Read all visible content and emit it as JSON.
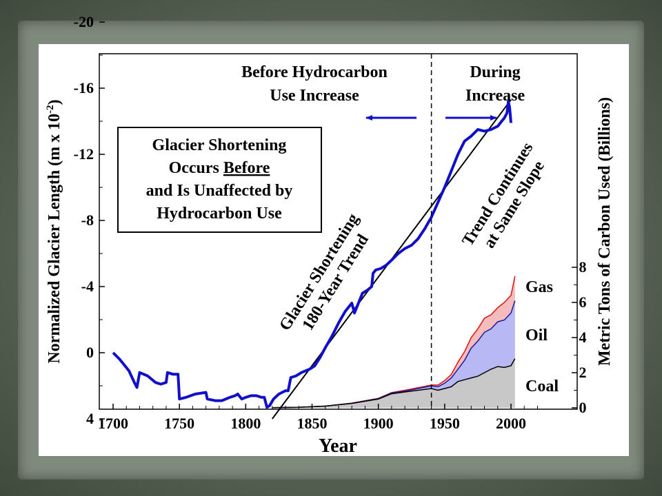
{
  "chart_data": {
    "type": "line",
    "xlabel": "Year",
    "ylabel_left": "Normalized Glacier Length (m x 10",
    "ylabel_left_exp": "-2",
    "ylabel_left_close": ")",
    "ylabel_right": "Metric Tons of Carbon Used (Billions)",
    "x_ticks": [
      "1700",
      "1750",
      "1800",
      "1850",
      "1900",
      "1950",
      "2000"
    ],
    "y_left_ticks": [
      "-20",
      "-16",
      "-12",
      "-8",
      "-4",
      "0",
      "4"
    ],
    "y_right_ticks": [
      "0",
      "2",
      "4",
      "6",
      "8"
    ],
    "xlim": [
      1695,
      2025
    ],
    "ylim_left": [
      4,
      -22
    ],
    "ylim_right": [
      0,
      8
    ],
    "divider_year": 1940,
    "header_left": [
      "Before Hydrocarbon",
      "Use Increase"
    ],
    "header_right": [
      "During",
      "Increase"
    ],
    "box_lines": [
      {
        "pre": "Glacier Shortening",
        "u": "",
        "post": ""
      },
      {
        "pre": "Occurs ",
        "u": "Before",
        "post": ""
      },
      {
        "pre": "and Is Unaffected by",
        "u": "",
        "post": ""
      },
      {
        "pre": "Hydrocarbon Use",
        "u": "",
        "post": ""
      }
    ],
    "trend_label": [
      "Glacier Shortening",
      "180-Year Trend"
    ],
    "continue_label": [
      "Trend Continues",
      "at Same Slope"
    ],
    "series_labels": [
      "Gas",
      "Oil",
      "Coal"
    ],
    "trend_line": [
      [
        1820,
        4
      ],
      [
        2000,
        -15.3
      ]
    ],
    "glacier": {
      "name": "",
      "color": "#1010cc",
      "x": [
        1700,
        1705,
        1708,
        1712,
        1716,
        1718,
        1720,
        1726,
        1732,
        1736,
        1740,
        1741,
        1745,
        1749,
        1750,
        1755,
        1762,
        1770,
        1771,
        1777,
        1782,
        1788,
        1792,
        1794,
        1797,
        1800,
        1804,
        1808,
        1812,
        1814,
        1816,
        1818,
        1821,
        1825,
        1830,
        1832,
        1834,
        1838,
        1842,
        1848,
        1852,
        1856,
        1860,
        1865,
        1870,
        1875,
        1880,
        1882,
        1886,
        1888,
        1892,
        1895,
        1896,
        1898,
        1902,
        1906,
        1910,
        1915,
        1920,
        1925,
        1930,
        1935,
        1940,
        1945,
        1950,
        1955,
        1960,
        1965,
        1970,
        1975,
        1980,
        1985,
        1990,
        1993,
        1995,
        1997,
        1998,
        1999,
        2000
      ],
      "y": [
        0,
        0.4,
        0.7,
        1.1,
        1.8,
        2.1,
        1.2,
        1.4,
        1.8,
        1.9,
        1.8,
        1.2,
        1.3,
        1.3,
        2.8,
        2.7,
        2.5,
        2.4,
        2.8,
        2.9,
        2.9,
        2.7,
        2.6,
        2.5,
        2.8,
        2.7,
        2.6,
        2.6,
        2.7,
        2.7,
        3.3,
        3.2,
        2.8,
        2.5,
        2.3,
        2.3,
        1.5,
        1.4,
        1.2,
        1.0,
        0.8,
        0.3,
        -0.3,
        -1.0,
        -1.8,
        -2.5,
        -3.0,
        -2.4,
        -3.2,
        -3.6,
        -3.8,
        -4.0,
        -4.8,
        -5.0,
        -5.1,
        -5.3,
        -5.6,
        -6.0,
        -6.3,
        -6.5,
        -6.9,
        -7.5,
        -8.2,
        -9.1,
        -10.0,
        -11.0,
        -12.0,
        -12.8,
        -13.1,
        -13.5,
        -13.4,
        -13.5,
        -13.7,
        -14.0,
        -14.2,
        -14.5,
        -15.2,
        -14.8,
        -13.9
      ]
    },
    "carbon": {
      "x": [
        1820,
        1840,
        1860,
        1880,
        1900,
        1910,
        1920,
        1930,
        1940,
        1945,
        1950,
        1955,
        1960,
        1965,
        1970,
        1975,
        1980,
        1985,
        1990,
        1995,
        2000,
        2003
      ],
      "coal": [
        0.01,
        0.03,
        0.1,
        0.25,
        0.5,
        0.8,
        0.9,
        1.0,
        1.1,
        1.0,
        1.1,
        1.2,
        1.5,
        1.6,
        1.7,
        1.8,
        2.0,
        2.2,
        2.35,
        2.3,
        2.4,
        2.8
      ],
      "oil": [
        0.01,
        0.03,
        0.1,
        0.26,
        0.52,
        0.85,
        0.95,
        1.1,
        1.25,
        1.2,
        1.4,
        1.7,
        2.2,
        2.7,
        3.4,
        3.8,
        4.3,
        4.5,
        4.9,
        5.0,
        5.4,
        6.1
      ],
      "gas": [
        0.01,
        0.03,
        0.1,
        0.27,
        0.54,
        0.87,
        1.0,
        1.15,
        1.3,
        1.3,
        1.55,
        1.9,
        2.6,
        3.2,
        4.0,
        4.5,
        5.1,
        5.3,
        5.7,
        6.0,
        6.4,
        7.5
      ],
      "coal_fill": "#c8c8c8",
      "oil_fill": "#b8b8f4",
      "gas_fill": "#f5bcbc",
      "oil_line": "#1a1aa0",
      "gas_line": "#e01010"
    }
  }
}
